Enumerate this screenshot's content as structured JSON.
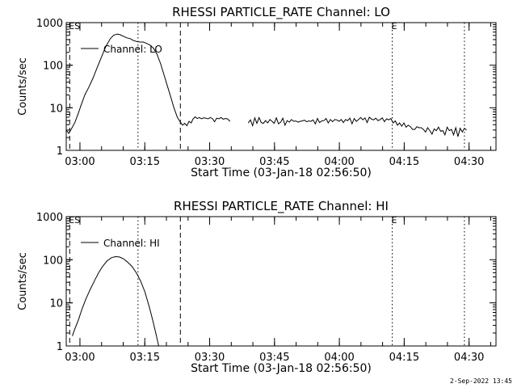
{
  "footer": {
    "timestamp": "2-Sep-2022 13:45"
  },
  "chart_data": [
    {
      "type": "line",
      "title": "RHESSI PARTICLE_RATE Channel: LO",
      "xlabel": "Start Time (03-Jan-18 02:56:50)",
      "ylabel": "Counts/sec",
      "x_unit": "minutes after 02:56:50",
      "xlim": [
        0,
        99.4
      ],
      "ylim": [
        1,
        1000
      ],
      "y_scale": "log",
      "x_ticks": [
        {
          "t": 3.17,
          "label": "03:00"
        },
        {
          "t": 18.17,
          "label": "03:15"
        },
        {
          "t": 33.17,
          "label": "03:30"
        },
        {
          "t": 48.17,
          "label": "03:45"
        },
        {
          "t": 63.17,
          "label": "04:00"
        },
        {
          "t": 78.17,
          "label": "04:15"
        },
        {
          "t": 93.17,
          "label": "04:30"
        }
      ],
      "y_ticks": [
        {
          "v": 1,
          "label": "1"
        },
        {
          "v": 10,
          "label": "10"
        },
        {
          "v": 100,
          "label": "100"
        },
        {
          "v": 1000,
          "label": "1000"
        }
      ],
      "legend": {
        "entries": [
          "Channel: LO"
        ],
        "position": "top-left"
      },
      "markers": [
        {
          "t": 0.8,
          "style": "dashed",
          "label": "ES"
        },
        {
          "t": 16.6,
          "style": "dotted",
          "label": ""
        },
        {
          "t": 26.4,
          "style": "dashed",
          "label": ""
        },
        {
          "t": 75.4,
          "style": "dotted",
          "label": "E"
        },
        {
          "t": 92.1,
          "style": "dotted",
          "label": ""
        }
      ],
      "series": [
        {
          "name": "Channel: LO",
          "segments": [
            [
              [
                0,
                3.0
              ],
              [
                0.6,
                2.5
              ],
              [
                1.2,
                3.2
              ],
              [
                2.0,
                4.5
              ],
              [
                2.8,
                7.5
              ],
              [
                3.5,
                12
              ],
              [
                4.3,
                20
              ],
              [
                5.2,
                30
              ],
              [
                6.2,
                50
              ],
              [
                7.2,
                90
              ],
              [
                8.2,
                160
              ],
              [
                9.2,
                280
              ],
              [
                10.2,
                420
              ],
              [
                11.0,
                510
              ],
              [
                11.8,
                540
              ],
              [
                12.5,
                520
              ],
              [
                13.2,
                480
              ],
              [
                14.0,
                440
              ],
              [
                14.8,
                420
              ],
              [
                15.5,
                380
              ],
              [
                16.3,
                360
              ],
              [
                17.0,
                350
              ],
              [
                17.8,
                350
              ],
              [
                18.5,
                330
              ],
              [
                19.3,
                300
              ],
              [
                20.2,
                250
              ],
              [
                21.0,
                180
              ],
              [
                21.8,
                110
              ],
              [
                22.5,
                65
              ],
              [
                23.3,
                35
              ],
              [
                24.1,
                19
              ],
              [
                24.9,
                10
              ],
              [
                25.7,
                6
              ],
              [
                26.4,
                4.6
              ],
              [
                26.9,
                3.9
              ],
              [
                27.4,
                4.3
              ],
              [
                27.9,
                3.8
              ],
              [
                28.4,
                4.8
              ],
              [
                28.9,
                4.4
              ],
              [
                29.3,
                5.4
              ],
              [
                29.8,
                6.1
              ],
              [
                30.3,
                5.6
              ],
              [
                30.8,
                5.9
              ],
              [
                31.3,
                5.5
              ],
              [
                31.8,
                5.8
              ],
              [
                32.3,
                5.7
              ],
              [
                32.8,
                5.5
              ],
              [
                33.3,
                5.9
              ],
              [
                33.8,
                5.6
              ],
              [
                34.3,
                4.7
              ],
              [
                34.8,
                5.7
              ],
              [
                35.3,
                5.5
              ],
              [
                35.8,
                5.9
              ],
              [
                36.3,
                5.4
              ],
              [
                36.8,
                5.6
              ],
              [
                37.3,
                5.5
              ],
              [
                37.9,
                4.8
              ]
            ],
            [
              [
                42.1,
                4.4
              ],
              [
                42.6,
                5.2
              ],
              [
                43.1,
                3.8
              ],
              [
                43.6,
                5.8
              ],
              [
                44.1,
                4.3
              ],
              [
                44.6,
                5.9
              ],
              [
                45.1,
                4.5
              ],
              [
                45.6,
                4.3
              ],
              [
                46.1,
                5.0
              ],
              [
                46.6,
                4.4
              ],
              [
                47.1,
                5.3
              ],
              [
                47.6,
                4.8
              ],
              [
                48.1,
                4.3
              ],
              [
                48.6,
                5.8
              ],
              [
                49.1,
                4.2
              ],
              [
                49.6,
                4.6
              ],
              [
                50.1,
                5.7
              ],
              [
                50.6,
                3.9
              ],
              [
                51.1,
                5.0
              ],
              [
                51.6,
                4.6
              ],
              [
                52.1,
                5.3
              ],
              [
                52.6,
                4.8
              ],
              [
                53.1,
                4.9
              ],
              [
                53.6,
                4.6
              ],
              [
                54.1,
                4.8
              ],
              [
                54.6,
                4.9
              ],
              [
                55.1,
                5.1
              ],
              [
                55.6,
                4.7
              ],
              [
                56.1,
                4.9
              ],
              [
                56.6,
                4.8
              ],
              [
                57.1,
                5.2
              ],
              [
                57.6,
                4.2
              ],
              [
                58.1,
                5.6
              ],
              [
                58.6,
                4.5
              ],
              [
                59.1,
                4.9
              ],
              [
                59.6,
                5.0
              ],
              [
                60.1,
                5.6
              ],
              [
                60.6,
                4.4
              ],
              [
                61.1,
                5.3
              ],
              [
                61.6,
                4.7
              ],
              [
                62.1,
                5.3
              ],
              [
                62.6,
                5.2
              ],
              [
                63.1,
                4.8
              ],
              [
                63.6,
                5.3
              ],
              [
                64.1,
                4.5
              ],
              [
                64.6,
                5.3
              ],
              [
                65.1,
                5.0
              ],
              [
                65.6,
                5.7
              ],
              [
                66.1,
                4.2
              ],
              [
                66.6,
                5.6
              ],
              [
                67.1,
                4.8
              ],
              [
                67.6,
                5.3
              ],
              [
                68.1,
                5.9
              ],
              [
                68.6,
                5.2
              ],
              [
                69.1,
                5.8
              ],
              [
                69.6,
                4.5
              ],
              [
                70.1,
                6.0
              ],
              [
                70.6,
                5.4
              ],
              [
                71.1,
                5.2
              ],
              [
                71.6,
                5.7
              ],
              [
                72.1,
                5.0
              ],
              [
                72.6,
                5.3
              ],
              [
                73.1,
                5.8
              ],
              [
                73.6,
                4.7
              ],
              [
                74.1,
                5.5
              ],
              [
                74.6,
                5.2
              ],
              [
                75.1,
                5.6
              ],
              [
                75.6,
                4.4
              ],
              [
                76.1,
                4.9
              ],
              [
                76.6,
                3.9
              ],
              [
                77.1,
                4.4
              ],
              [
                77.6,
                3.7
              ],
              [
                78.1,
                4.4
              ],
              [
                78.6,
                3.5
              ],
              [
                79.1,
                3.9
              ],
              [
                79.6,
                3.6
              ],
              [
                80.1,
                3.1
              ],
              [
                80.6,
                3.1
              ],
              [
                81.1,
                3.6
              ],
              [
                81.6,
                3.4
              ],
              [
                82.1,
                3.4
              ],
              [
                82.6,
                3.1
              ],
              [
                83.1,
                2.7
              ],
              [
                83.6,
                3.4
              ],
              [
                84.1,
                2.9
              ],
              [
                84.6,
                2.4
              ],
              [
                85.1,
                3.2
              ],
              [
                85.6,
                2.9
              ],
              [
                86.1,
                3.5
              ],
              [
                86.6,
                2.8
              ],
              [
                87.1,
                2.9
              ],
              [
                87.6,
                2.3
              ],
              [
                88.1,
                3.5
              ],
              [
                88.6,
                2.9
              ],
              [
                89.1,
                3.1
              ],
              [
                89.6,
                2.3
              ],
              [
                90.1,
                3.4
              ],
              [
                90.6,
                2.1
              ],
              [
                91.1,
                3.3
              ],
              [
                91.6,
                2.7
              ],
              [
                92.1,
                3.3
              ],
              [
                92.6,
                3.0
              ]
            ]
          ]
        }
      ]
    },
    {
      "type": "line",
      "title": "RHESSI PARTICLE_RATE Channel: HI",
      "xlabel": "Start Time (03-Jan-18 02:56:50)",
      "ylabel": "Counts/sec",
      "x_unit": "minutes after 02:56:50",
      "xlim": [
        0,
        99.4
      ],
      "ylim": [
        1,
        1000
      ],
      "y_scale": "log",
      "x_ticks": [
        {
          "t": 3.17,
          "label": "03:00"
        },
        {
          "t": 18.17,
          "label": "03:15"
        },
        {
          "t": 33.17,
          "label": "03:30"
        },
        {
          "t": 48.17,
          "label": "03:45"
        },
        {
          "t": 63.17,
          "label": "04:00"
        },
        {
          "t": 78.17,
          "label": "04:15"
        },
        {
          "t": 93.17,
          "label": "04:30"
        }
      ],
      "y_ticks": [
        {
          "v": 1,
          "label": "1"
        },
        {
          "v": 10,
          "label": "10"
        },
        {
          "v": 100,
          "label": "100"
        },
        {
          "v": 1000,
          "label": "1000"
        }
      ],
      "legend": {
        "entries": [
          "Channel: HI"
        ],
        "position": "top-left"
      },
      "markers": [
        {
          "t": 0.8,
          "style": "dashed",
          "label": "ES"
        },
        {
          "t": 16.6,
          "style": "dotted",
          "label": ""
        },
        {
          "t": 26.4,
          "style": "dashed",
          "label": ""
        },
        {
          "t": 75.4,
          "style": "dotted",
          "label": "E"
        },
        {
          "t": 92.1,
          "style": "dotted",
          "label": ""
        }
      ],
      "series": [
        {
          "name": "Channel: HI",
          "segments": [
            [
              [
                1.4,
                1.7
              ],
              [
                2.0,
                2.5
              ],
              [
                2.8,
                4
              ],
              [
                3.6,
                7
              ],
              [
                4.5,
                12
              ],
              [
                5.5,
                20
              ],
              [
                6.5,
                32
              ],
              [
                7.5,
                50
              ],
              [
                8.5,
                72
              ],
              [
                9.5,
                95
              ],
              [
                10.5,
                112
              ],
              [
                11.4,
                118
              ],
              [
                12.3,
                116
              ],
              [
                13.2,
                106
              ],
              [
                14.2,
                88
              ],
              [
                15.2,
                70
              ],
              [
                16.2,
                50
              ],
              [
                17.2,
                32
              ],
              [
                18.2,
                18
              ],
              [
                19.2,
                8
              ],
              [
                20.0,
                4
              ],
              [
                20.7,
                2
              ],
              [
                21.2,
                1.2
              ],
              [
                21.4,
                1.0
              ]
            ]
          ]
        }
      ]
    }
  ]
}
